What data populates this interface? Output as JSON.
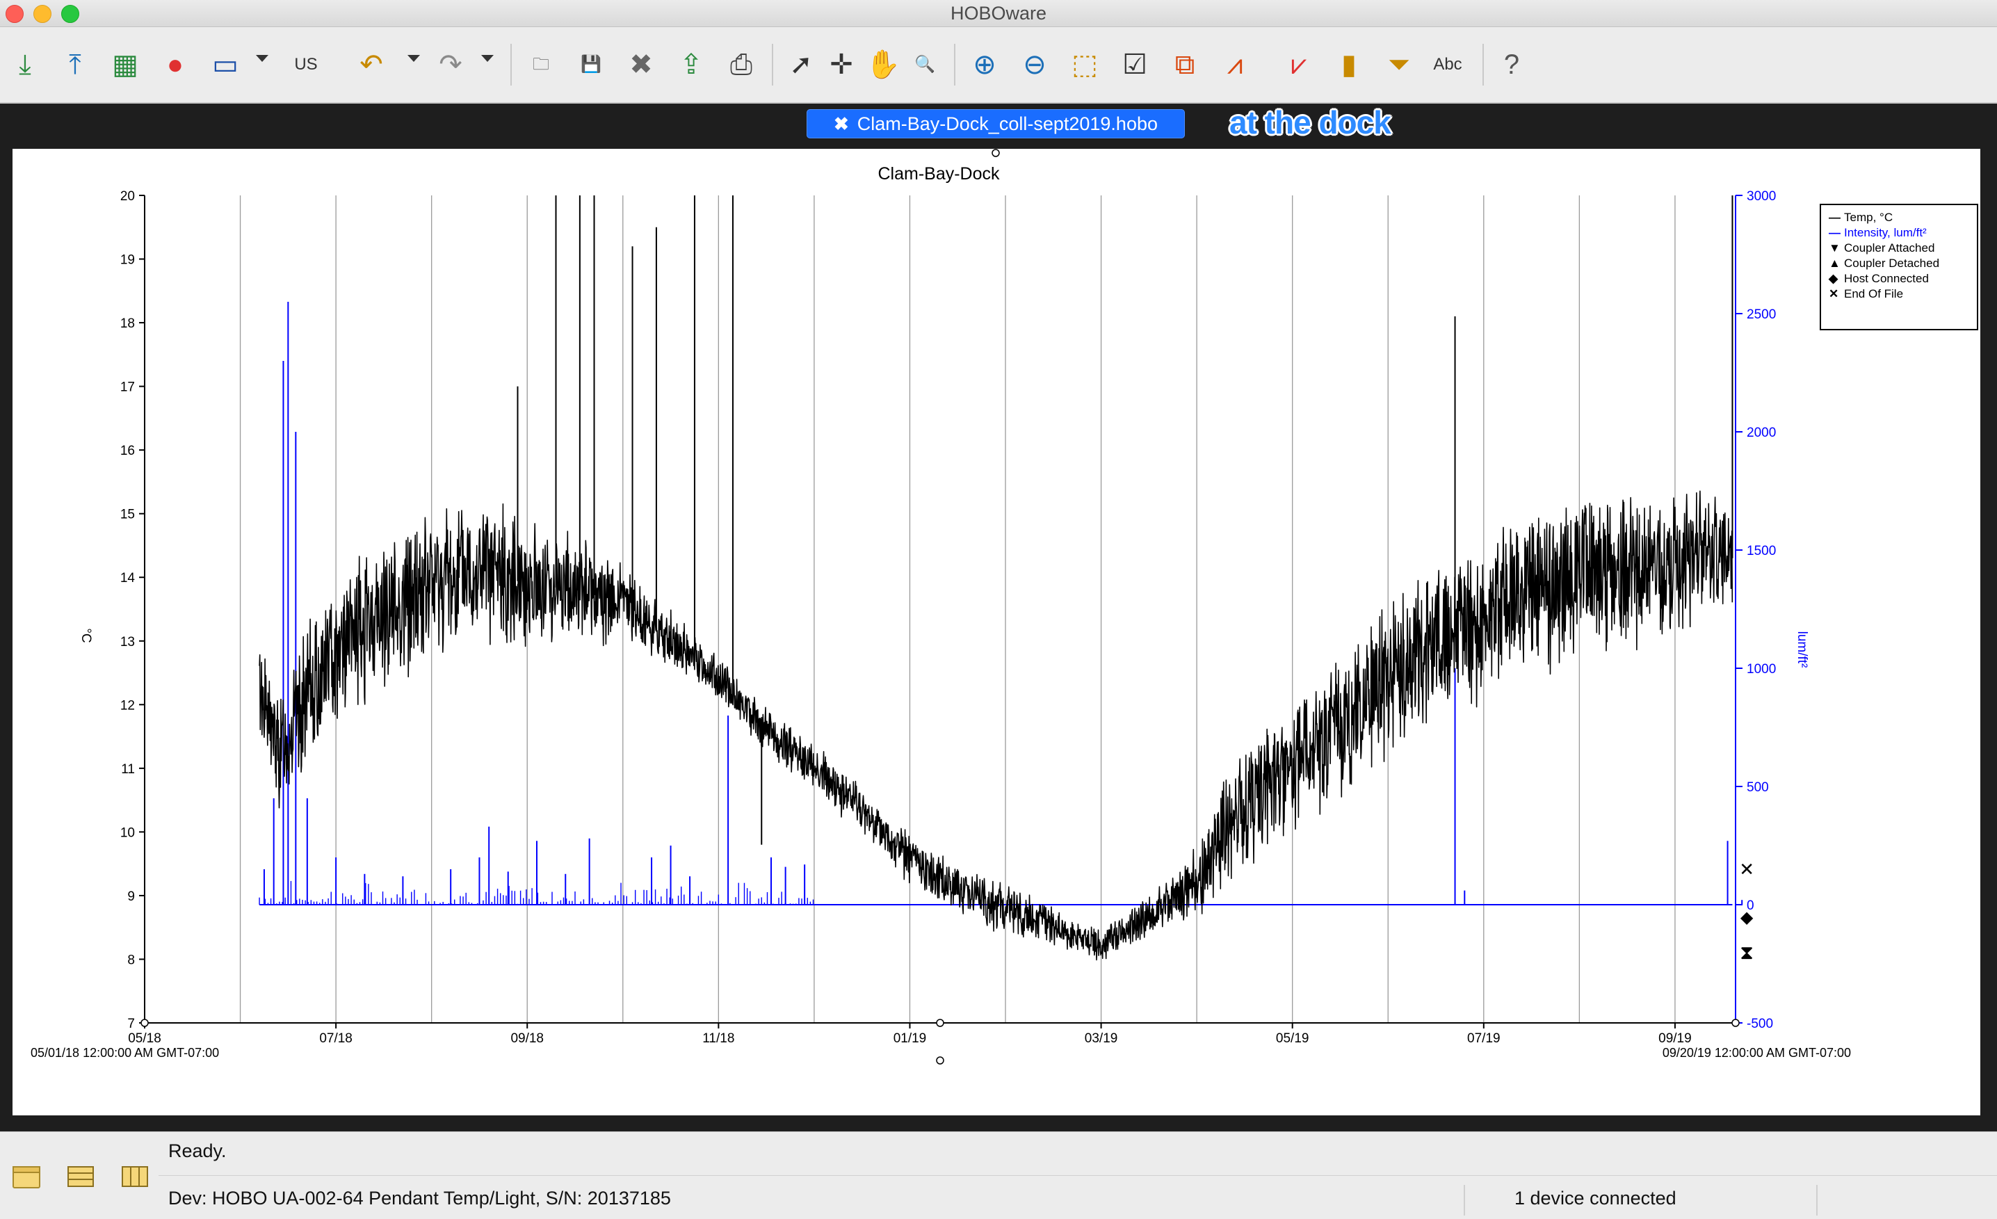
{
  "window": {
    "title": "HOBOware"
  },
  "toolbar": {
    "buttons": [
      {
        "name": "readout-icon",
        "glyph": "⤓",
        "color": "#2b8a3e"
      },
      {
        "name": "launch-icon",
        "glyph": "⤒",
        "color": "#1c6fb8"
      },
      {
        "name": "status-icon",
        "glyph": "▦",
        "color": "#2b8a3e"
      },
      {
        "name": "record-icon",
        "glyph": "●",
        "color": "#e03131"
      },
      {
        "name": "device-icon",
        "glyph": "▭",
        "color": "#1c4fa8"
      },
      {
        "name": "units-icon",
        "glyph": "US",
        "color": "#333333"
      },
      {
        "name": "undo-icon",
        "glyph": "↶",
        "color": "#c88a00"
      },
      {
        "name": "redo-icon",
        "glyph": "↷",
        "color": "#8a8a8a"
      },
      {
        "name": "open-folder-icon",
        "glyph": "🗀",
        "color": "#555555"
      },
      {
        "name": "save-icon",
        "glyph": "💾",
        "color": "#555555"
      },
      {
        "name": "close-file-icon",
        "glyph": "✖",
        "color": "#666666"
      },
      {
        "name": "export-icon",
        "glyph": "⇪",
        "color": "#2b8a3e"
      },
      {
        "name": "print-icon",
        "glyph": "⎙",
        "color": "#444444"
      },
      {
        "name": "pointer-icon",
        "glyph": "➚",
        "color": "#333333"
      },
      {
        "name": "crosshair-icon",
        "glyph": "✛",
        "color": "#333333"
      },
      {
        "name": "pan-hand-icon",
        "glyph": "✋",
        "color": "#333333"
      },
      {
        "name": "magnify-icon",
        "glyph": "🔍",
        "color": "#333333"
      },
      {
        "name": "zoom-in-icon",
        "glyph": "⊕",
        "color": "#1c6fb8"
      },
      {
        "name": "zoom-out-icon",
        "glyph": "⊖",
        "color": "#1c6fb8"
      },
      {
        "name": "zoom-box-icon",
        "glyph": "⬚",
        "color": "#c88a00"
      },
      {
        "name": "check-series-icon",
        "glyph": "☑",
        "color": "#333333"
      },
      {
        "name": "series-a-icon",
        "glyph": "⧉",
        "color": "#d9480f"
      },
      {
        "name": "series-b-icon",
        "glyph": "⩘",
        "color": "#d9480f"
      },
      {
        "name": "series-c-icon",
        "glyph": "⩗",
        "color": "#e03131"
      },
      {
        "name": "ruler-icon",
        "glyph": "▮",
        "color": "#c88a00"
      },
      {
        "name": "filter-icon",
        "glyph": "⏷",
        "color": "#c88a00"
      },
      {
        "name": "text-label-icon",
        "glyph": "Abc",
        "color": "#333333"
      },
      {
        "name": "help-icon",
        "glyph": "?",
        "color": "#555555"
      }
    ]
  },
  "tab": {
    "close": "✖",
    "label": "Clam-Bay-Dock_coll-sept2019.hobo"
  },
  "annotation": "at the dock",
  "status": {
    "text": "Ready.",
    "device": "Dev: HOBO UA-002-64 Pendant Temp/Light, S/N: 20137185",
    "connection": "1 device connected"
  },
  "chart_data": {
    "type": "line",
    "title": "Clam-Bay-Dock",
    "y_left": {
      "label": "°C",
      "min": 7,
      "max": 20,
      "ticks": [
        7,
        8,
        9,
        10,
        11,
        12,
        13,
        14,
        15,
        16,
        17,
        18,
        19,
        20
      ]
    },
    "y_right": {
      "label": "lum/ft²",
      "min": -500,
      "max": 3000,
      "ticks": [
        -500,
        0,
        500,
        1000,
        1500,
        2000,
        2500,
        3000
      ],
      "color": "#0000ff"
    },
    "x": {
      "start_label": "05/01/18 12:00:00 AM GMT-07:00",
      "end_label": "09/20/19 12:00:00 AM GMT-07:00",
      "ticks": [
        "05/18",
        "07/18",
        "09/18",
        "11/18",
        "01/19",
        "03/19",
        "05/19",
        "07/19",
        "09/19"
      ],
      "start_month": "2018-05-01",
      "end_month": "2019-09-20"
    },
    "legend": [
      {
        "symbol": "—",
        "label": "Temp, °C",
        "color": "#000000"
      },
      {
        "symbol": "—",
        "label": "Intensity, lum/ft²",
        "color": "#0000ff"
      },
      {
        "symbol": "▼",
        "label": "Coupler Attached",
        "color": "#000000"
      },
      {
        "symbol": "▲",
        "label": "Coupler Detached",
        "color": "#000000"
      },
      {
        "symbol": "◆",
        "label": "Host Connected",
        "color": "#000000"
      },
      {
        "symbol": "✕",
        "label": "End Of File",
        "color": "#000000"
      }
    ],
    "series": [
      {
        "name": "Temp, °C",
        "color": "#000000",
        "axis": "left",
        "x_month": [
          1.2,
          1.4,
          1.7,
          2.0,
          2.5,
          3.0,
          3.5,
          4.0,
          4.5,
          5.0,
          5.5,
          6.0,
          6.5,
          7.0,
          7.5,
          8.0,
          8.5,
          9.0,
          9.5,
          10.0,
          10.5,
          11.0,
          11.5,
          12.0,
          12.5,
          13.0,
          13.5,
          14.0,
          14.5,
          15.0,
          15.5,
          16.0,
          16.6
        ],
        "mean": [
          12.3,
          11.2,
          12.1,
          12.9,
          13.4,
          13.9,
          14.1,
          13.9,
          13.8,
          13.6,
          13.0,
          12.4,
          11.6,
          11.0,
          10.3,
          9.6,
          9.1,
          8.8,
          8.5,
          8.2,
          8.7,
          9.2,
          10.5,
          11.0,
          11.6,
          12.4,
          12.9,
          13.3,
          13.9,
          14.0,
          14.1,
          14.2,
          14.3
        ],
        "spread": [
          0.9,
          1.1,
          1.2,
          1.3,
          1.3,
          1.4,
          1.3,
          1.1,
          1.0,
          0.7,
          0.5,
          0.4,
          0.4,
          0.45,
          0.45,
          0.45,
          0.45,
          0.45,
          0.35,
          0.3,
          0.4,
          0.6,
          1.2,
          1.1,
          1.3,
          1.4,
          1.4,
          1.4,
          1.5,
          1.5,
          1.4,
          1.3,
          1.1
        ],
        "spikes": [
          {
            "x_month": 3.9,
            "value": 17.0
          },
          {
            "x_month": 4.3,
            "value": 20.0
          },
          {
            "x_month": 4.55,
            "value": 20.0
          },
          {
            "x_month": 4.7,
            "value": 20.0
          },
          {
            "x_month": 5.1,
            "value": 19.2
          },
          {
            "x_month": 5.35,
            "value": 19.5
          },
          {
            "x_month": 5.75,
            "value": 20.0
          },
          {
            "x_month": 6.15,
            "value": 20.0
          },
          {
            "x_month": 6.45,
            "value": 9.8
          },
          {
            "x_month": 13.7,
            "value": 18.1
          },
          {
            "x_month": 16.6,
            "value": 20.0
          }
        ]
      },
      {
        "name": "Intensity, lum/ft²",
        "color": "#0000ff",
        "axis": "right",
        "baseline": 0,
        "x_start_month": 1.2,
        "x_end_month": 16.6,
        "spikes": [
          {
            "x_month": 1.25,
            "value": 150
          },
          {
            "x_month": 1.35,
            "value": 450
          },
          {
            "x_month": 1.45,
            "value": 2300
          },
          {
            "x_month": 1.5,
            "value": 2550
          },
          {
            "x_month": 1.58,
            "value": 2000
          },
          {
            "x_month": 1.7,
            "value": 450
          },
          {
            "x_month": 2.0,
            "value": 200
          },
          {
            "x_month": 2.3,
            "value": 130
          },
          {
            "x_month": 2.7,
            "value": 120
          },
          {
            "x_month": 3.2,
            "value": 150
          },
          {
            "x_month": 3.5,
            "value": 200
          },
          {
            "x_month": 3.6,
            "value": 330
          },
          {
            "x_month": 3.8,
            "value": 140
          },
          {
            "x_month": 4.1,
            "value": 270
          },
          {
            "x_month": 4.4,
            "value": 130
          },
          {
            "x_month": 4.65,
            "value": 280
          },
          {
            "x_month": 5.3,
            "value": 200
          },
          {
            "x_month": 5.5,
            "value": 250
          },
          {
            "x_month": 5.7,
            "value": 120
          },
          {
            "x_month": 6.1,
            "value": 800
          },
          {
            "x_month": 6.55,
            "value": 200
          },
          {
            "x_month": 6.7,
            "value": 160
          },
          {
            "x_month": 6.9,
            "value": 170
          },
          {
            "x_month": 13.7,
            "value": 1000
          },
          {
            "x_month": 13.8,
            "value": 60
          },
          {
            "x_month": 16.55,
            "value": 270
          },
          {
            "x_month": 16.7,
            "value": 20
          }
        ]
      }
    ],
    "markers": [
      {
        "type": "End Of File",
        "symbol": "✕"
      },
      {
        "type": "Host Connected",
        "symbol": "◆"
      },
      {
        "type": "Coupler Attached/Detached",
        "symbol": "⧗"
      }
    ]
  }
}
